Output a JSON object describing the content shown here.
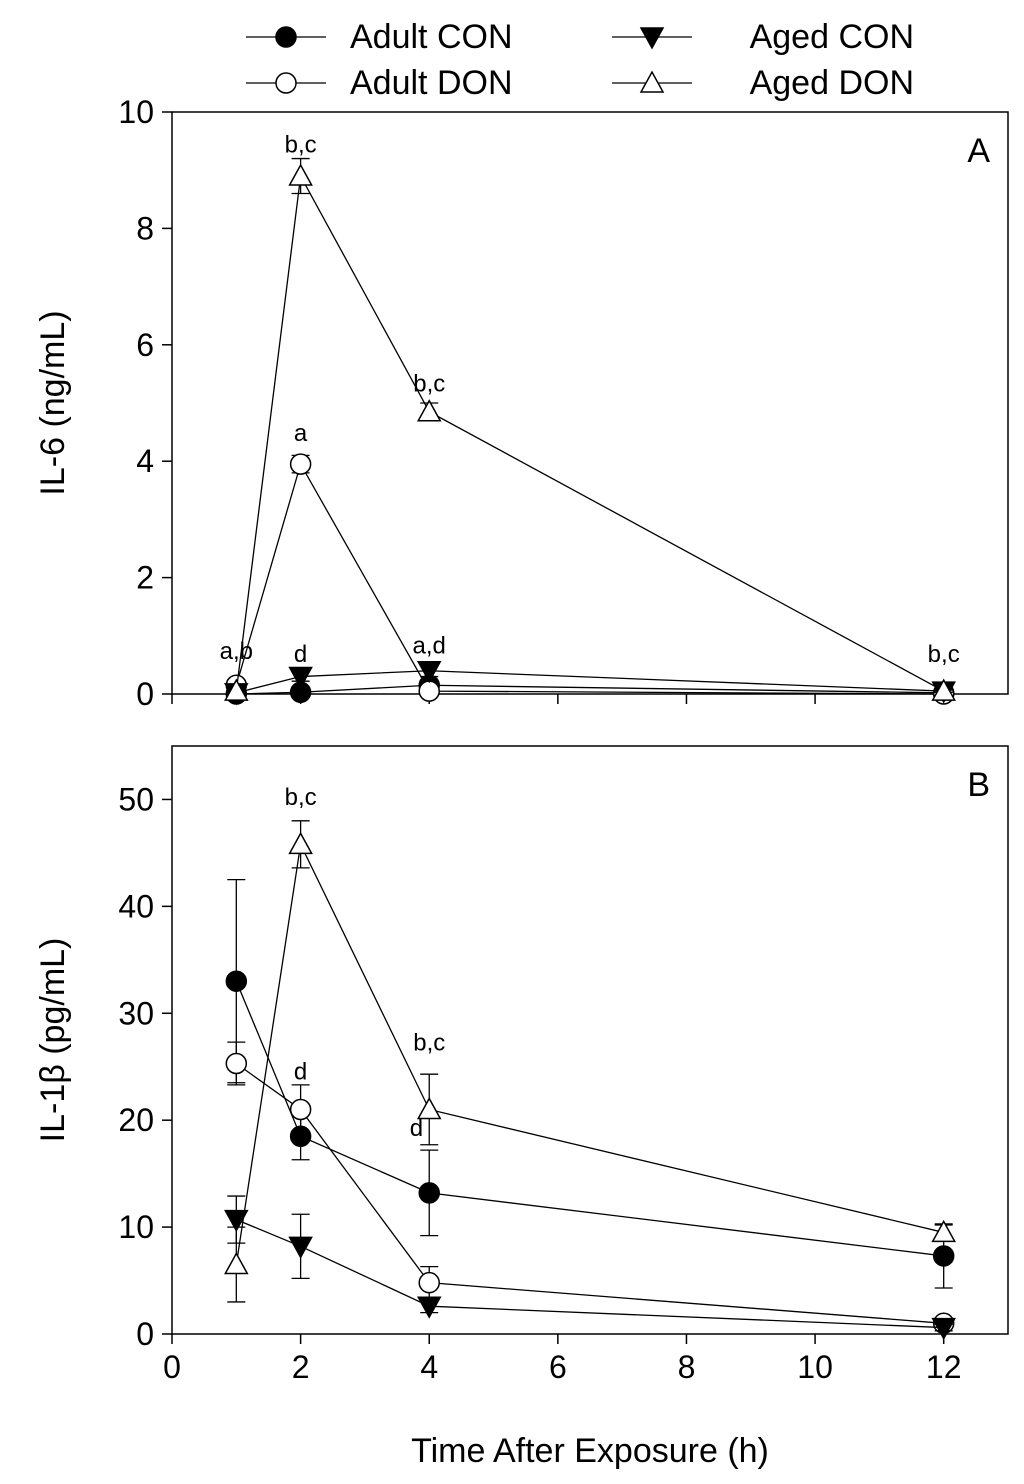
{
  "chart_data": [
    {
      "type": "line",
      "panel_label": "A",
      "title": "",
      "xlabel": "",
      "ylabel": "IL-6 (ng/mL)",
      "ylim": [
        0,
        10
      ],
      "yticks": [
        0,
        2,
        4,
        6,
        8,
        10
      ],
      "x": [
        1,
        2,
        4,
        12
      ],
      "series": [
        {
          "name": "Adult CON",
          "marker": "filled-circle",
          "values": [
            0.0,
            0.03,
            0.15,
            0.02
          ],
          "errors": [
            0.02,
            0.02,
            0.05,
            0.01
          ]
        },
        {
          "name": "Adult DON",
          "marker": "open-circle",
          "values": [
            0.15,
            3.95,
            0.05,
            0.0
          ],
          "errors": [
            0.05,
            0.15,
            0.03,
            0.01
          ]
        },
        {
          "name": "Aged CON",
          "marker": "filled-triangle-down",
          "values": [
            0.02,
            0.3,
            0.4,
            0.05
          ],
          "errors": [
            0.02,
            0.08,
            0.1,
            0.02
          ]
        },
        {
          "name": "Aged DON",
          "marker": "open-triangle-up",
          "values": [
            0.05,
            8.9,
            4.85,
            0.05
          ],
          "errors": [
            0.02,
            0.3,
            0.15,
            0.02
          ]
        }
      ],
      "annotations": [
        {
          "text": "a,b",
          "x": 1,
          "y": 0.6
        },
        {
          "text": "b,c",
          "x": 2,
          "y": 9.3
        },
        {
          "text": "a",
          "x": 2,
          "y": 4.35
        },
        {
          "text": "d",
          "x": 2,
          "y": 0.55
        },
        {
          "text": "b,c",
          "x": 4,
          "y": 5.2
        },
        {
          "text": "a,d",
          "x": 4,
          "y": 0.7
        },
        {
          "text": "b,c",
          "x": 12,
          "y": 0.55
        }
      ]
    },
    {
      "type": "line",
      "panel_label": "B",
      "title": "",
      "xlabel": "Time After Exposure (h)",
      "ylabel": "IL-1β (pg/mL)",
      "ylim": [
        0,
        55
      ],
      "yticks": [
        0,
        10,
        20,
        30,
        40,
        50
      ],
      "xlim": [
        0,
        13
      ],
      "xticks": [
        0,
        2,
        4,
        6,
        8,
        10,
        12
      ],
      "x": [
        1,
        2,
        4,
        12
      ],
      "series": [
        {
          "name": "Adult CON",
          "marker": "filled-circle",
          "values": [
            33.0,
            18.5,
            13.2,
            7.3
          ],
          "errors": [
            9.5,
            2.2,
            4.0,
            3.0
          ]
        },
        {
          "name": "Adult DON",
          "marker": "open-circle",
          "values": [
            25.3,
            21.0,
            4.8,
            1.0
          ],
          "errors": [
            2.0,
            2.3,
            1.5,
            0.3
          ]
        },
        {
          "name": "Aged CON",
          "marker": "filled-triangle-down",
          "values": [
            10.7,
            8.2,
            2.6,
            0.6
          ],
          "errors": [
            2.2,
            3.0,
            0.6,
            0.3
          ]
        },
        {
          "name": "Aged DON",
          "marker": "open-triangle-up",
          "values": [
            6.5,
            45.8,
            21.0,
            9.5
          ],
          "errors": [
            3.5,
            2.2,
            3.3,
            0.7
          ]
        }
      ],
      "annotations": [
        {
          "text": "b,c",
          "x": 2,
          "y": 49.5
        },
        {
          "text": "d",
          "x": 2,
          "y": 23.8
        },
        {
          "text": "b,c",
          "x": 4,
          "y": 26.5
        },
        {
          "text": "d",
          "x": 3.8,
          "y": 18.5
        }
      ]
    }
  ],
  "legend": {
    "placement": "top",
    "items": [
      {
        "name": "Adult CON",
        "marker": "filled-circle"
      },
      {
        "name": "Aged CON",
        "marker": "filled-triangle-down"
      },
      {
        "name": "Adult DON",
        "marker": "open-circle"
      },
      {
        "name": "Aged DON",
        "marker": "open-triangle-up"
      }
    ]
  }
}
